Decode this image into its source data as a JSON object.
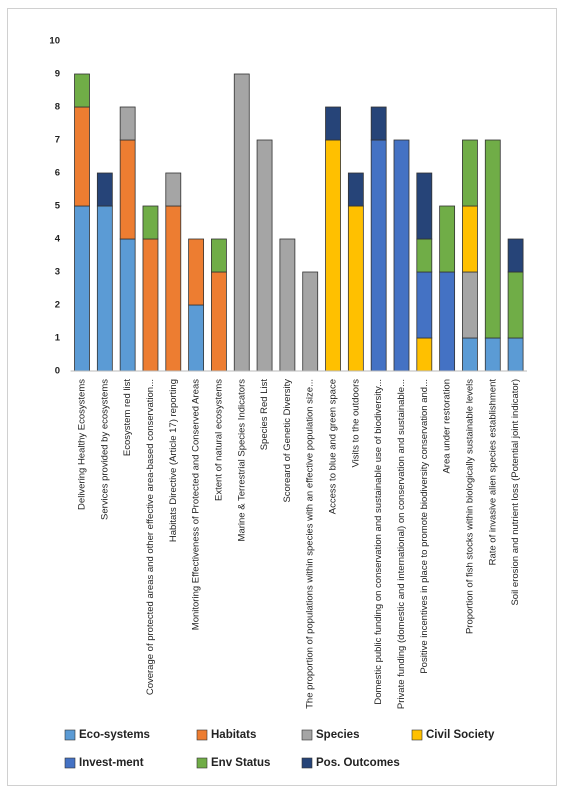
{
  "chart_data": {
    "type": "stacked_bar",
    "categories": [
      "Delivering Healthy Ecosystems",
      "Services provided by ecosystems",
      "Ecosystem red list",
      "Coverage of protected areas and other effective area-based conservation...",
      "Habitats Directive (Article 17) reporting",
      "Monitoring Effectiveness of Protected and Conserved Areas",
      "Extent of natural ecosystems",
      "Marine & Terrestrial Species Indicators",
      "Species Red List",
      "Scoreard of Genetic Diversity",
      "The proportion of populations within species with an effective population size...",
      "Access to blue and green space",
      "Visits to the outdoors",
      "Domestic public funding on conservation and sustainable use of biodiversity...",
      "Private funding (domestic and international) on conservation and sustainable...",
      "Positive incentives in place to promote biodiversity conservation and...",
      "Area under restoration",
      "Proportion of fish stocks within biologically sustainable levels",
      "Rate of invasive alien species establishment",
      "Soil erosion and nutrient loss (Potential joint indicator)"
    ],
    "series": [
      {
        "name": "Eco-systems",
        "color": "#5b9bd5",
        "values": [
          5,
          5,
          4,
          0,
          0,
          2,
          0,
          0,
          0,
          0,
          0,
          0,
          0,
          0,
          0,
          0,
          0,
          1,
          1,
          1
        ]
      },
      {
        "name": "Habitats",
        "color": "#ed7d31",
        "values": [
          3,
          0,
          3,
          4,
          5,
          2,
          3,
          0,
          0,
          0,
          0,
          0,
          0,
          0,
          0,
          0,
          0,
          0,
          0,
          0
        ]
      },
      {
        "name": "Species",
        "color": "#a5a5a5",
        "values": [
          0,
          0,
          1,
          0,
          1,
          0,
          0,
          9,
          7,
          4,
          3,
          0,
          0,
          0,
          0,
          0,
          0,
          2,
          0,
          0
        ]
      },
      {
        "name": "Civil Society",
        "color": "#ffc000",
        "values": [
          0,
          0,
          0,
          0,
          0,
          0,
          0,
          0,
          0,
          0,
          0,
          7,
          5,
          0,
          0,
          1,
          0,
          2,
          0,
          0
        ]
      },
      {
        "name": "Invest-ment",
        "color": "#4472c4",
        "values": [
          0,
          0,
          0,
          0,
          0,
          0,
          0,
          0,
          0,
          0,
          0,
          0,
          0,
          7,
          7,
          2,
          3,
          0,
          0,
          0
        ]
      },
      {
        "name": "Env Status",
        "color": "#70ad47",
        "values": [
          1,
          0,
          0,
          1,
          0,
          0,
          1,
          0,
          0,
          0,
          0,
          0,
          0,
          0,
          0,
          1,
          2,
          2,
          6,
          2
        ]
      },
      {
        "name": "Pos. Outcomes",
        "color": "#264478",
        "values": [
          0,
          1,
          0,
          0,
          0,
          0,
          0,
          0,
          0,
          0,
          0,
          1,
          1,
          1,
          0,
          2,
          0,
          0,
          0,
          1
        ]
      }
    ],
    "ylim": [
      0,
      10
    ],
    "yticks": [
      0,
      1,
      2,
      3,
      4,
      5,
      6,
      7,
      8,
      9,
      10
    ],
    "grid": false
  }
}
